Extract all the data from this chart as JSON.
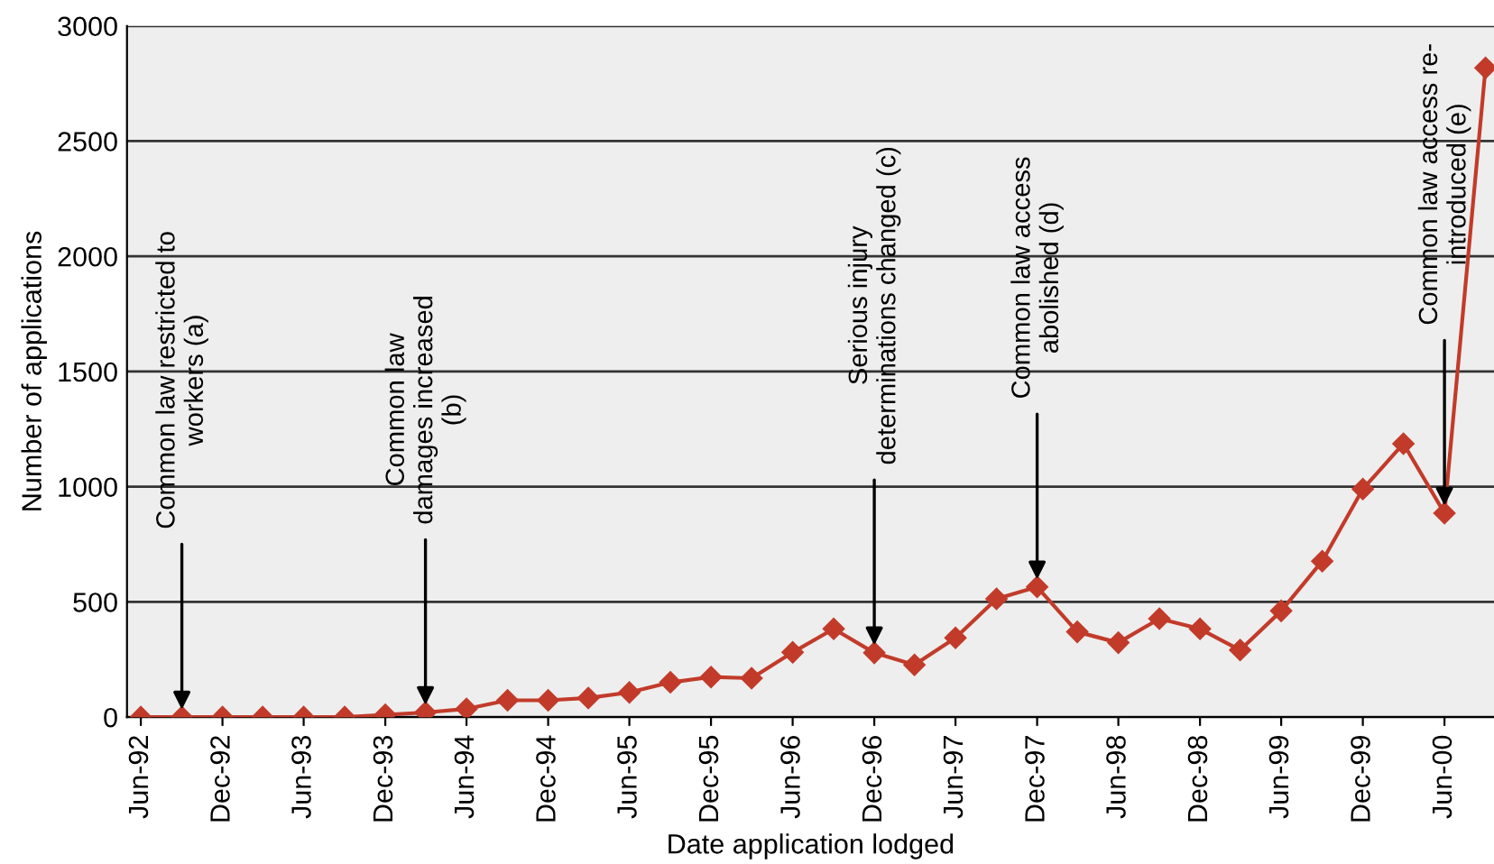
{
  "chart_data": {
    "type": "line",
    "xlabel": "Date application lodged",
    "ylabel": "Number of applications",
    "x": [
      "1992-06",
      "1992-09",
      "1992-12",
      "1993-03",
      "1993-06",
      "1993-09",
      "1993-12",
      "1994-03",
      "1994-06",
      "1994-09",
      "1994-12",
      "1995-03",
      "1995-06",
      "1995-09",
      "1995-12",
      "1996-03",
      "1996-06",
      "1996-09",
      "1996-12",
      "1997-03",
      "1997-06",
      "1997-09",
      "1997-12",
      "1998-03",
      "1998-06",
      "1998-09",
      "1998-12",
      "1999-03",
      "1999-06",
      "1999-09",
      "1999-12",
      "2000-03",
      "2000-06",
      "2000-09"
    ],
    "series": [
      {
        "color": "#c23b2a",
        "values": [
          0,
          0,
          0,
          0,
          0,
          0,
          10,
          20,
          36,
          73,
          73,
          83,
          107,
          151,
          174,
          169,
          281,
          383,
          279,
          227,
          344,
          513,
          565,
          370,
          323,
          427,
          383,
          291,
          461,
          677,
          990,
          1187,
          885,
          2818
        ]
      }
    ],
    "marker": "diamond",
    "line_style": "solid",
    "grid": "y",
    "xlim": [
      "1992-05-01",
      "2000-09-20"
    ],
    "ylim": [
      0,
      3000
    ],
    "yticks": [
      0,
      500,
      1000,
      1500,
      2000,
      2500,
      3000
    ],
    "xticks": [
      {
        "value": "1992-06",
        "label": "Jun-92"
      },
      {
        "value": "1992-12",
        "label": "Dec-92"
      },
      {
        "value": "1993-06",
        "label": "Jun-93"
      },
      {
        "value": "1993-12",
        "label": "Dec-93"
      },
      {
        "value": "1994-06",
        "label": "Jun-94"
      },
      {
        "value": "1994-12",
        "label": "Dec-94"
      },
      {
        "value": "1995-06",
        "label": "Jun-95"
      },
      {
        "value": "1995-12",
        "label": "Dec-95"
      },
      {
        "value": "1996-06",
        "label": "Jun-96"
      },
      {
        "value": "1996-12",
        "label": "Dec-96"
      },
      {
        "value": "1997-06",
        "label": "Jun-97"
      },
      {
        "value": "1997-12",
        "label": "Dec-97"
      },
      {
        "value": "1998-06",
        "label": "Jun-98"
      },
      {
        "value": "1998-12",
        "label": "Dec-98"
      },
      {
        "value": "1999-06",
        "label": "Jun-99"
      },
      {
        "value": "1999-12",
        "label": "Dec-99"
      },
      {
        "value": "2000-06",
        "label": "Jun-00"
      }
    ],
    "annotations": [
      {
        "text": "Common law restricted to\nworkers (a)",
        "x": "1992-09",
        "y": 0
      },
      {
        "text": "Common law\ndamages increased\n(b)",
        "x": "1994-03",
        "y": 20
      },
      {
        "text": "Serious injury\ndeterminations changed (c)",
        "x": "1996-12",
        "y": 279
      },
      {
        "text": "Common law access\nabolished (d)",
        "x": "1997-12",
        "y": 565
      },
      {
        "text": "Common law access re-\nintroduced (e)",
        "x": "2000-06",
        "y": 885
      }
    ]
  }
}
